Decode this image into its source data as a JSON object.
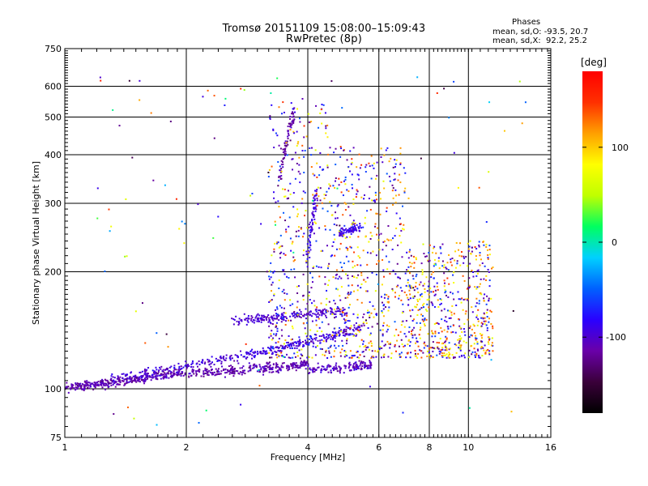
{
  "title_line1": "Tromsø 20151109 15:08:00–15:09:43",
  "title_line2": "RwPretec (8p)",
  "stats": {
    "heading": "Phases",
    "o_mode": "mean, sd,O: -93.5, 20.7",
    "x_mode": "mean, sd,X:  92.2, 25.2"
  },
  "colorbar": {
    "label": "[deg]",
    "ticks": [
      100,
      0,
      -100
    ],
    "colormap": [
      "#000000",
      "#3a003a",
      "#6a00a8",
      "#2a00ff",
      "#0060ff",
      "#00d0ff",
      "#00ff60",
      "#c0ff00",
      "#ffff00",
      "#ffa000",
      "#ff3000",
      "#ff0000"
    ]
  },
  "chart_data": {
    "type": "scatter",
    "title": "Tromsø 20151109 15:08:00–15:09:43 RwPretec (8p)",
    "xlabel": "Frequency [MHz]",
    "ylabel": "Stationary phase Virtual Height [km]",
    "xscale": "log",
    "yscale": "log",
    "xlim": [
      1,
      16
    ],
    "ylim": [
      75,
      750
    ],
    "xticks": [
      1,
      2,
      4,
      6,
      8,
      10,
      16
    ],
    "yticks": [
      75,
      100,
      200,
      300,
      400,
      500,
      600,
      750
    ],
    "grid": true,
    "color_value": "phase [deg]",
    "color_range": [
      -180,
      180
    ],
    "traces": [
      {
        "x": [
          1.0,
          1.15,
          1.3,
          1.5,
          1.7,
          2.0
        ],
        "y": [
          100,
          102,
          104,
          106,
          108,
          110
        ],
        "phase": -110
      },
      {
        "x": [
          2.0,
          2.5,
          3.0,
          3.5,
          4.0
        ],
        "y": [
          110,
          111,
          113,
          114,
          116
        ],
        "phase": -110
      },
      {
        "x": [
          4.0,
          5.0,
          5.8
        ],
        "y": [
          112,
          113,
          116
        ],
        "phase": -105
      },
      {
        "x": [
          1.3,
          2.0,
          2.8,
          3.5,
          4.5,
          5.5
        ],
        "y": [
          106,
          114,
          122,
          128,
          136,
          144
        ],
        "phase": -95
      },
      {
        "x": [
          2.6,
          3.2,
          4.0,
          5.0
        ],
        "y": [
          150,
          152,
          155,
          158
        ],
        "phase": -100
      },
      {
        "x": [
          3.4,
          3.7
        ],
        "y": [
          350,
          520
        ],
        "phase": -115
      },
      {
        "x": [
          4.0,
          4.2
        ],
        "y": [
          220,
          320
        ],
        "phase": -95
      },
      {
        "x": [
          4.8,
          5.4
        ],
        "y": [
          250,
          260
        ],
        "phase": -90
      }
    ]
  },
  "scatter_seed": 20151109
}
